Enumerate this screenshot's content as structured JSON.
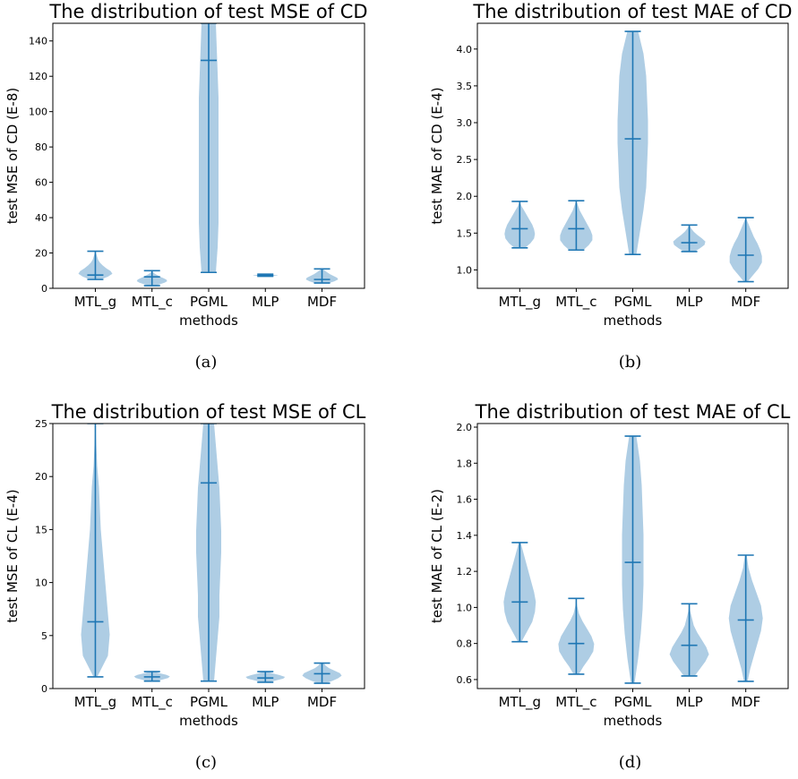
{
  "colors": {
    "violin_fill": "#aecde4",
    "stat_line": "#1f77b4",
    "axis": "#000000"
  },
  "chart_data": [
    {
      "type": "violin",
      "title": "The distribution of test MSE of CD",
      "xlabel": "methods",
      "ylabel": "test MSE of CD (E-8)",
      "caption": "(a)",
      "categories": [
        "MTL_g",
        "MTL_c",
        "PGML",
        "MLP",
        "MDF"
      ],
      "ylim": [
        0,
        150
      ],
      "yticks": [
        0,
        20,
        40,
        60,
        80,
        100,
        120,
        140
      ],
      "grid": false,
      "stats": [
        {
          "min": 5,
          "median": 7.5,
          "max": 21
        },
        {
          "min": 1.5,
          "median": 6.5,
          "max": 10
        },
        {
          "min": 9,
          "median": 129,
          "max": 150
        },
        {
          "min": 6.8,
          "median": 7.3,
          "max": 8
        },
        {
          "min": 3,
          "median": 5,
          "max": 11
        }
      ]
    },
    {
      "type": "violin",
      "title": "The distribution of test MAE of CD",
      "xlabel": "methods",
      "ylabel": "test MAE of CD (E-4)",
      "caption": "(b)",
      "categories": [
        "MTL_g",
        "MTL_c",
        "PGML",
        "MLP",
        "MDF"
      ],
      "ylim": [
        0.75,
        4.35
      ],
      "yticks": [
        "1.0",
        "1.5",
        "2.0",
        "2.5",
        "3.0",
        "3.5",
        "4.0"
      ],
      "grid": false,
      "stats": [
        {
          "min": 1.3,
          "median": 1.56,
          "max": 1.93
        },
        {
          "min": 1.27,
          "median": 1.56,
          "max": 1.94
        },
        {
          "min": 1.21,
          "median": 2.78,
          "max": 4.24
        },
        {
          "min": 1.25,
          "median": 1.37,
          "max": 1.61
        },
        {
          "min": 0.84,
          "median": 1.2,
          "max": 1.71
        }
      ]
    },
    {
      "type": "violin",
      "title": "The distribution of test MSE of CL",
      "xlabel": "methods",
      "ylabel": "test MSE of CL (E-4)",
      "caption": "(c)",
      "categories": [
        "MTL_g",
        "MTL_c",
        "PGML",
        "MLP",
        "MDF"
      ],
      "ylim": [
        0,
        25
      ],
      "yticks": [
        0,
        5,
        10,
        15,
        20,
        25
      ],
      "grid": false,
      "stats": [
        {
          "min": 1.1,
          "median": 6.3,
          "max": 25
        },
        {
          "min": 0.7,
          "median": 1.1,
          "max": 1.6
        },
        {
          "min": 0.7,
          "median": 19.4,
          "max": 25
        },
        {
          "min": 0.6,
          "median": 1.0,
          "max": 1.6
        },
        {
          "min": 0.5,
          "median": 1.4,
          "max": 2.4
        }
      ]
    },
    {
      "type": "violin",
      "title": "The distribution of test MAE of CL",
      "xlabel": "methods",
      "ylabel": "test MAE of CL (E-2)",
      "caption": "(d)",
      "categories": [
        "MTL_g",
        "MTL_c",
        "PGML",
        "MLP",
        "MDF"
      ],
      "ylim": [
        0.55,
        2.02
      ],
      "yticks": [
        "0.6",
        "0.8",
        "1.0",
        "1.2",
        "1.4",
        "1.6",
        "1.8",
        "2.0"
      ],
      "grid": false,
      "stats": [
        {
          "min": 0.81,
          "median": 1.03,
          "max": 1.36
        },
        {
          "min": 0.63,
          "median": 0.8,
          "max": 1.05
        },
        {
          "min": 0.58,
          "median": 1.25,
          "max": 1.95
        },
        {
          "min": 0.62,
          "median": 0.79,
          "max": 1.02
        },
        {
          "min": 0.59,
          "median": 0.93,
          "max": 1.29
        }
      ]
    }
  ]
}
